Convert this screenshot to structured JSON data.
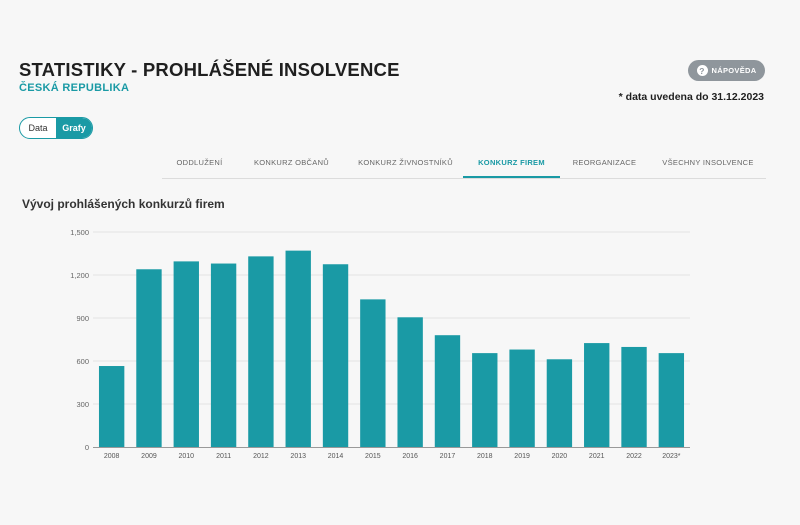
{
  "header": {
    "title": "STATISTIKY - PROHLÁŠENÉ INSOLVENCE",
    "subtitle": "ČESKÁ REPUBLIKA",
    "help_label": "NÁPOVĚDA",
    "help_icon": "?",
    "date_note": "* data uvedena do 31.12.2023"
  },
  "toggle": {
    "data_label": "Data",
    "graphs_label": "Grafy",
    "selected": "Grafy"
  },
  "tabs": [
    {
      "label": "ODDLUŽENÍ",
      "active": false
    },
    {
      "label": "KONKURZ OBČANŮ",
      "active": false
    },
    {
      "label": "KONKURZ ŽIVNOSTNÍKŮ",
      "active": false
    },
    {
      "label": "KONKURZ FIREM",
      "active": true
    },
    {
      "label": "REORGANIZACE",
      "active": false
    },
    {
      "label": "VŠECHNY INSOLVENCE",
      "active": false
    }
  ],
  "colors": {
    "accent": "#1a9aa5",
    "bar": "#1a9aa5"
  },
  "chart_data": {
    "type": "bar",
    "title": "Vývoj prohlášených konkurzů firem",
    "xlabel": "",
    "ylabel": "",
    "categories": [
      "2008",
      "2009",
      "2010",
      "2011",
      "2012",
      "2013",
      "2014",
      "2015",
      "2016",
      "2017",
      "2018",
      "2019",
      "2020",
      "2021",
      "2022",
      "2023*"
    ],
    "values": [
      565,
      1240,
      1295,
      1280,
      1330,
      1370,
      1275,
      1030,
      905,
      780,
      655,
      680,
      612,
      725,
      698,
      655
    ],
    "ylim": [
      0,
      1500
    ],
    "yticks": [
      0,
      300,
      600,
      900,
      "1,200",
      "1,500"
    ],
    "grid": true,
    "legend": "none"
  }
}
